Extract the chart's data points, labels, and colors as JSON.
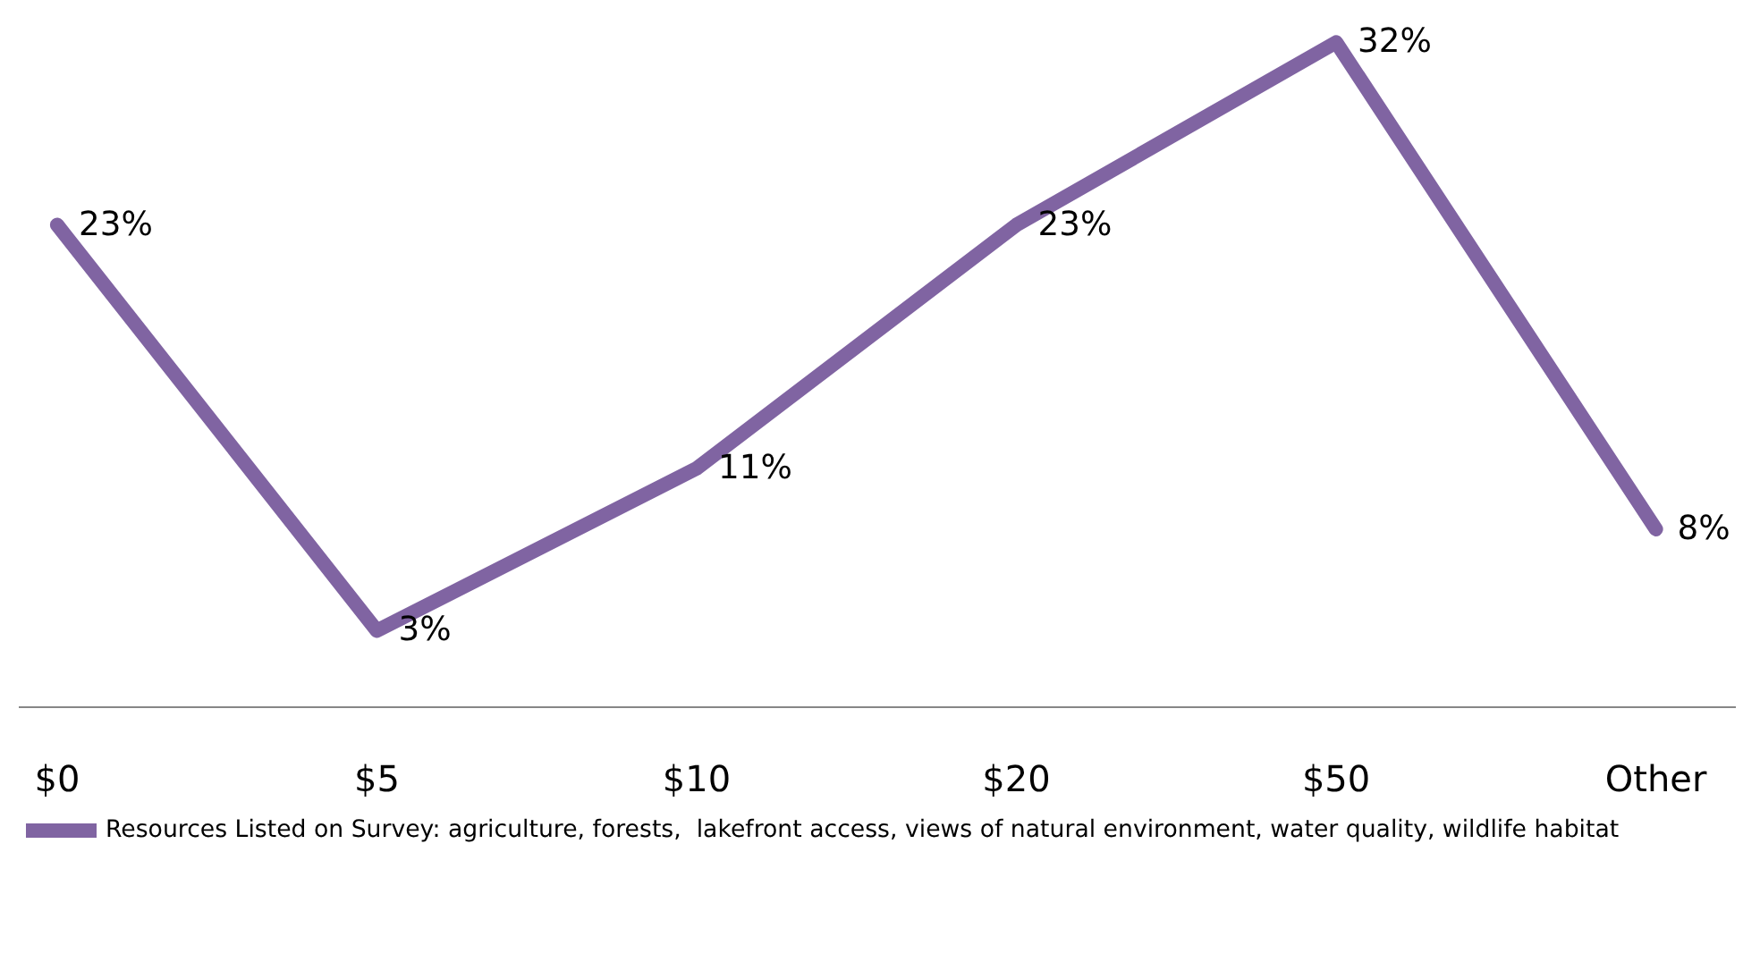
{
  "chart_data": {
    "type": "line",
    "categories": [
      "$0",
      "$5",
      "$10",
      "$20",
      "$50",
      "Other"
    ],
    "series": [
      {
        "name": "Resources Listed on Survey: agriculture, forests,  lakefront access, views of natural environment, water quality, wildlife habitat",
        "color": "#8064a2",
        "values": [
          23,
          3,
          11,
          23,
          32,
          8
        ],
        "value_labels": [
          "23%",
          "3%",
          "11%",
          "23%",
          "32%",
          "8%"
        ]
      }
    ],
    "legend": "bottom",
    "marker": "none",
    "line_style": "solid",
    "tick_labels": "x"
  }
}
